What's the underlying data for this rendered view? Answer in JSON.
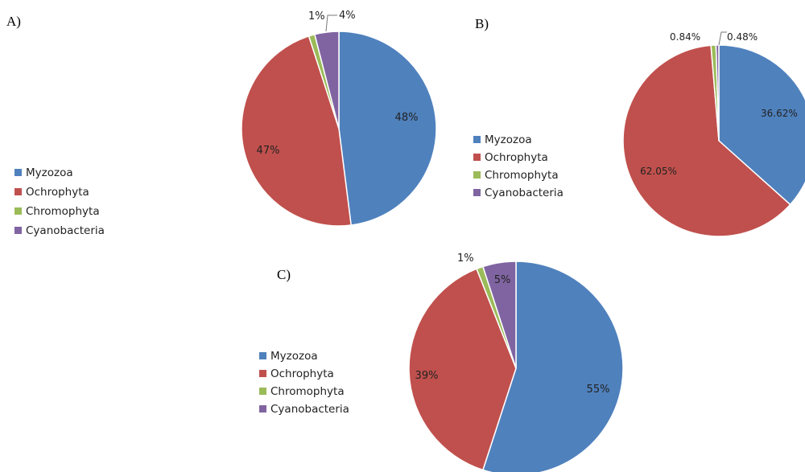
{
  "chart_data": [
    {
      "type": "pie",
      "panel": "A)",
      "categories": [
        "Myzozoa",
        "Ochrophyta",
        "Chromophyta",
        "Cyanobacteria"
      ],
      "values": [
        48,
        47,
        1,
        4
      ],
      "labels": [
        "48%",
        "47%",
        "1%",
        "4%"
      ]
    },
    {
      "type": "pie",
      "panel": "B)",
      "categories": [
        "Myzozoa",
        "Ochrophyta",
        "Chromophyta",
        "Cyanobacteria"
      ],
      "values": [
        36.62,
        62.05,
        0.84,
        0.48
      ],
      "labels": [
        "36.62%",
        "62.05%",
        "0.84%",
        "0.48%"
      ]
    },
    {
      "type": "pie",
      "panel": "C)",
      "categories": [
        "Myzozoa",
        "Ochrophyta",
        "Chromophyta",
        "Cyanobacteria"
      ],
      "values": [
        55,
        39,
        1,
        5
      ],
      "labels": [
        "55%",
        "39%",
        "1%",
        "5%"
      ]
    }
  ],
  "colors": [
    "#4f81bd",
    "#c0504d",
    "#9bbb59",
    "#8064a2"
  ]
}
